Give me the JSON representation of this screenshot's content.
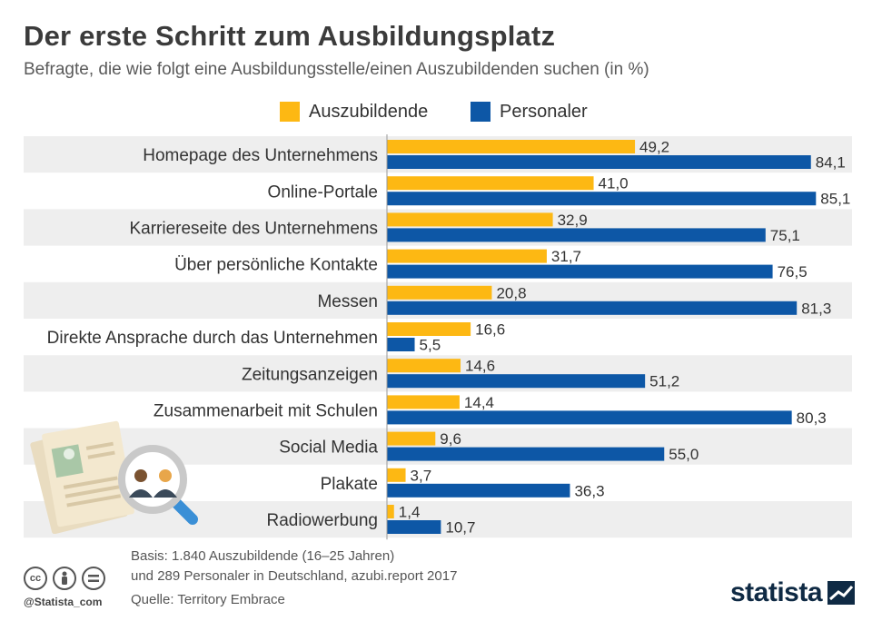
{
  "header": {
    "title": "Der erste Schritt zum Ausbildungsplatz",
    "subtitle": "Befragte, die wie folgt eine Ausbildungsstelle/einen Auszubildenden suchen (in %)"
  },
  "colors": {
    "series_0": "#FDB813",
    "series_1": "#0D57A6",
    "row_stripe": "#EEEEEE",
    "axis": "#999999"
  },
  "chart_data": {
    "type": "bar",
    "orientation": "horizontal",
    "title": "Der erste Schritt zum Ausbildungsplatz",
    "subtitle": "Befragte, die wie folgt eine Ausbildungsstelle/einen Auszubildenden suchen (in %)",
    "xlabel": "",
    "ylabel": "",
    "xlim": [
      0,
      100
    ],
    "grid": false,
    "legend_position": "top-center",
    "categories": [
      "Homepage des Unternehmens",
      "Online-Portale",
      "Karriereseite des Unternehmens",
      "Über persönliche Kontakte",
      "Messen",
      "Direkte Ansprache durch das Unternehmen",
      "Zeitungsanzeigen",
      "Zusammenarbeit mit Schulen",
      "Social Media",
      "Plakate",
      "Radiowerbung"
    ],
    "series": [
      {
        "name": "Auszubildende",
        "values": [
          49.2,
          41.0,
          32.9,
          31.7,
          20.8,
          16.6,
          14.6,
          14.4,
          9.6,
          3.7,
          1.4
        ],
        "labels": [
          "49,2",
          "41,0",
          "32,9",
          "31,7",
          "20,8",
          "16,6",
          "14,6",
          "14,4",
          "9,6",
          "3,7",
          "1,4"
        ]
      },
      {
        "name": "Personaler",
        "values": [
          84.1,
          85.1,
          75.1,
          76.5,
          81.3,
          5.5,
          51.2,
          80.3,
          55.0,
          36.3,
          10.7
        ],
        "labels": [
          "84,1",
          "85,1",
          "75,1",
          "76,5",
          "81,3",
          "5,5",
          "51,2",
          "80,3",
          "55,0",
          "36,3",
          "10,7"
        ]
      }
    ]
  },
  "footer": {
    "basis_line1": "Basis: 1.840 Auszubildende (16–25 Jahren)",
    "basis_line2": "und 289 Personaler in Deutschland, azubi.report 2017",
    "source": "Quelle: Territory Embrace",
    "handle": "@Statista_com",
    "brand": "statista",
    "cc_icons": [
      "cc-icon",
      "by-icon",
      "nd-icon"
    ]
  }
}
